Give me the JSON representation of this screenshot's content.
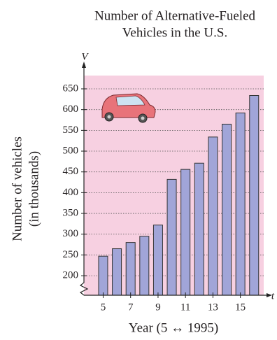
{
  "chart_data": {
    "type": "bar",
    "title": [
      "Number of Alternative-Fueled",
      "Vehicles in the U.S."
    ],
    "y_label": [
      "Number of vehicles",
      "(in thousands)"
    ],
    "x_label": "Year (5 ↔ 1995)",
    "y_axis_symbol": "V",
    "x_axis_symbol": "t",
    "x": [
      5,
      6,
      7,
      8,
      9,
      10,
      11,
      12,
      13,
      14,
      15,
      16
    ],
    "values": [
      247,
      265,
      280,
      295,
      322,
      432,
      456,
      471,
      534,
      565,
      592,
      634
    ],
    "color": "#a1a5d8",
    "background": "#f7d0e1",
    "xlim": [
      3.6,
      16.7
    ],
    "xticks": [
      5,
      7,
      9,
      11,
      13,
      15
    ],
    "ylim": [
      153,
      682
    ],
    "yticks": [
      200,
      250,
      300,
      350,
      400,
      450,
      500,
      550,
      600,
      650
    ],
    "grid": true
  }
}
